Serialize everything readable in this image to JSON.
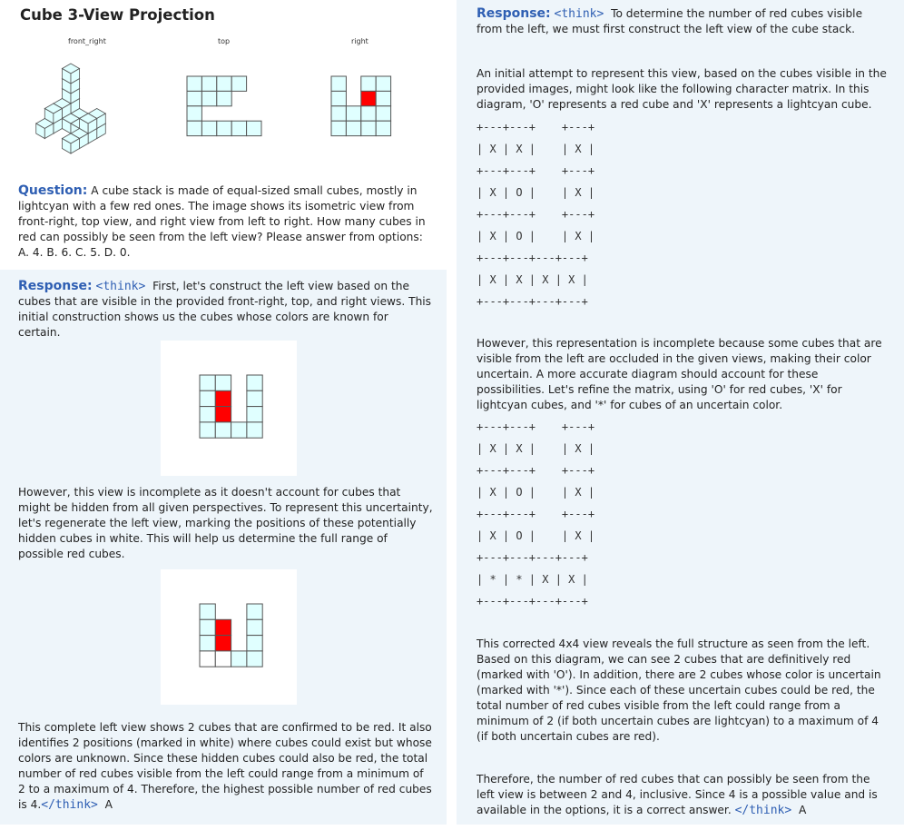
{
  "header": {
    "title": "Cube 3-View Projection"
  },
  "figure": {
    "labels": [
      "front_right",
      "top",
      "right"
    ]
  },
  "question": {
    "label": "Question:",
    "text": "A cube stack is made of equal-sized small cubes, mostly in lightcyan with a few red ones. The image shows its isometric view from front-right, top view, and right view from left to right. How many cubes in red can possibly be seen from the left view? Please answer from options: A. 4. B. 6. C. 5. D. 0."
  },
  "left_response": {
    "label": "Response:",
    "open_tag": "<think>",
    "intro": "First, let's construct the left view based on the cubes that are visible in the provided front-right, top, and right views. This initial construction shows us the cubes whose colors are known for certain.",
    "paragraph_2": "However, this view is incomplete as it doesn't account for cubes that might be hidden from all given perspectives. To represent this uncertainty, let's regenerate the left view, marking the positions of these potentially hidden cubes in white. This will help us determine the full range of possible red cubes.",
    "paragraph_3": "This complete left view shows 2 cubes that are confirmed to be red. It also identifies 2 positions (marked in white) where cubes could exist but whose colors are unknown. Since these hidden cubes could also be red, the total number of red cubes visible from the left could range from a minimum of 2 to a maximum of 4. Therefore, the highest possible number of red cubes is 4.",
    "close_tag": "</think>",
    "answer": "A"
  },
  "right_response": {
    "label": "Response:",
    "open_tag": "<think>",
    "intro": "To determine the number of red cubes visible from the left, we must first construct the left view of the cube stack.",
    "paragraph_2": "An initial attempt to represent this view, based on the cubes visible in the provided images, might look like the following character matrix. In this diagram, 'O' represents a red cube and 'X' represents a lightcyan cube.",
    "matrix_1": [
      "+---+---+    +---+",
      "| X | X |    | X |",
      "+---+---+    +---+",
      "| X | O |    | X |",
      "+---+---+    +---+",
      "| X | O |    | X |",
      "+---+---+---+---+",
      "| X | X | X | X |",
      "+---+---+---+---+"
    ],
    "paragraph_3": "However, this representation is incomplete because some cubes that are visible from the left are occluded in the given views, making their color uncertain. A more accurate diagram should account for these possibilities. Let's refine the matrix, using 'O' for red cubes, 'X' for lightcyan cubes, and '*' for cubes of an uncertain color.",
    "matrix_2": [
      "+---+---+    +---+",
      "| X | X |    | X |",
      "+---+---+    +---+",
      "| X | O |    | X |",
      "+---+---+    +---+",
      "| X | O |    | X |",
      "+---+---+---+---+",
      "| * | * | X | X |",
      "+---+---+---+---+"
    ],
    "paragraph_4": "This corrected 4x4 view reveals the full structure as seen from the left. Based on this diagram, we can see 2 cubes that are definitively red (marked with 'O'). In addition, there are 2 cubes whose color is uncertain (marked with '*'). Since each of these uncertain cubes could be red, the total number of red cubes visible from the left could range from a minimum of 2 (if both uncertain cubes are lightcyan) to a maximum of 4 (if both uncertain cubes are red).",
    "paragraph_5": "Therefore, the number of red cubes that can possibly be seen from the left view is between 2 and 4, inclusive. Since 4 is a possible value and is available in the options, it is a correct answer.",
    "close_tag": "</think>",
    "answer": "A"
  }
}
